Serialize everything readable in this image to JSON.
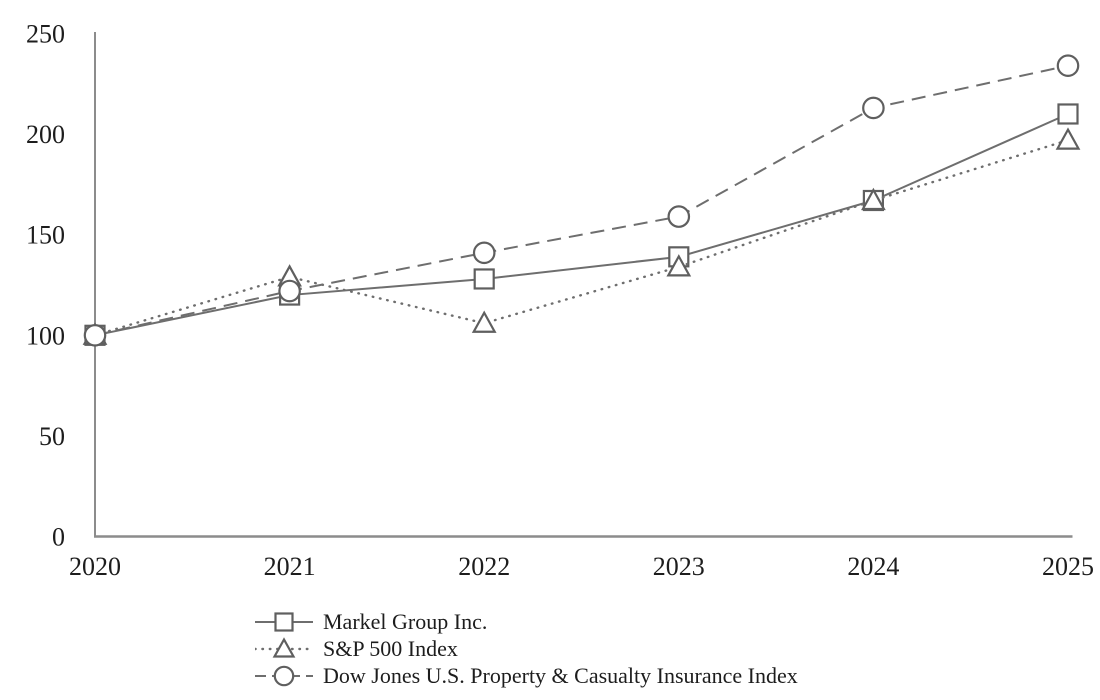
{
  "chart_data": {
    "type": "line",
    "title": "",
    "xlabel": "",
    "ylabel": "",
    "categories": [
      "2020",
      "2021",
      "2022",
      "2023",
      "2024",
      "2025"
    ],
    "ylim": [
      0,
      250
    ],
    "yticks": [
      0,
      50,
      100,
      150,
      200,
      250
    ],
    "grid": false,
    "legend_position": "bottom-left",
    "series": [
      {
        "name": "Markel Group Inc.",
        "marker": "square",
        "linestyle": "solid",
        "values": [
          100,
          120,
          128,
          139,
          167,
          210
        ]
      },
      {
        "name": "S&P 500 Index",
        "marker": "triangle",
        "linestyle": "dotted",
        "values": [
          100,
          129,
          106,
          134,
          167,
          197
        ]
      },
      {
        "name": "Dow Jones U.S. Property & Casualty Insurance Index",
        "marker": "circle",
        "linestyle": "dashed",
        "values": [
          100,
          122,
          141,
          159,
          213,
          234
        ]
      }
    ],
    "colors": {
      "line": "#6e6e6e",
      "marker_stroke": "#5f5f5f",
      "marker_fill": "#ffffff",
      "axis": "#8c8c8c",
      "text": "#1d1d1d"
    }
  }
}
